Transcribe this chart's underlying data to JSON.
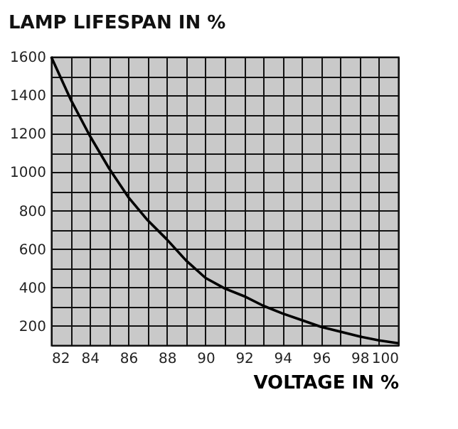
{
  "chart_data": {
    "type": "line",
    "title": "LAMP LIFESPAN IN %",
    "xlabel": "VOLTAGE IN %",
    "x": [
      82,
      83,
      84,
      85,
      86,
      87,
      88,
      89,
      90,
      91,
      92,
      93,
      94,
      95,
      96,
      97,
      98,
      99,
      100
    ],
    "series": [
      {
        "color": "#000000",
        "values": [
          1600,
          1380,
          1190,
          1020,
          870,
          750,
          650,
          540,
          450,
          395,
          355,
          305,
          265,
          230,
          195,
          170,
          145,
          125,
          110
        ]
      }
    ],
    "xlim": [
      82,
      100
    ],
    "ylim": [
      100,
      1600
    ],
    "xticks": [
      82,
      {
        "value": 83,
        "label": null
      },
      84,
      {
        "value": 85,
        "label": null
      },
      86,
      {
        "value": 87,
        "label": null
      },
      88,
      {
        "value": 89,
        "label": null
      },
      90,
      {
        "value": 91,
        "label": null
      },
      92,
      {
        "value": 93,
        "label": null
      },
      94,
      {
        "value": 95,
        "label": null
      },
      96,
      {
        "value": 97,
        "label": null
      },
      98,
      {
        "value": 99,
        "label": null
      },
      100
    ],
    "yticks": [
      {
        "value": 100,
        "label": null
      },
      200,
      {
        "value": 300,
        "label": null
      },
      400,
      {
        "value": 500,
        "label": null
      },
      600,
      {
        "value": 700,
        "label": null
      },
      800,
      {
        "value": 900,
        "label": null
      },
      1000,
      {
        "value": 1100,
        "label": null
      },
      1200,
      {
        "value": 1300,
        "label": null
      },
      1400,
      {
        "value": 1500,
        "label": null
      },
      1600
    ],
    "grid": true
  }
}
